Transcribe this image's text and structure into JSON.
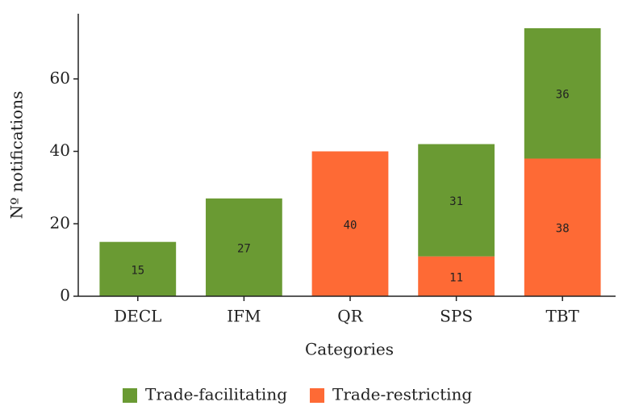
{
  "chart_data": {
    "type": "bar",
    "stacked": true,
    "x_label": "Categories",
    "y_label": "Nº notifications",
    "categories": [
      "DECL",
      "IFM",
      "QR",
      "SPS",
      "TBT"
    ],
    "series": [
      {
        "name": "Trade-facilitating",
        "color": "#6a9a33",
        "values": [
          15,
          27,
          0,
          31,
          36
        ]
      },
      {
        "name": "Trade-restricting",
        "color": "#fe6a35",
        "values": [
          0,
          0,
          40,
          11,
          38
        ]
      }
    ],
    "ylim": [
      0,
      78
    ],
    "yticks": [
      0,
      20,
      40,
      60
    ],
    "legend": "bottom"
  }
}
